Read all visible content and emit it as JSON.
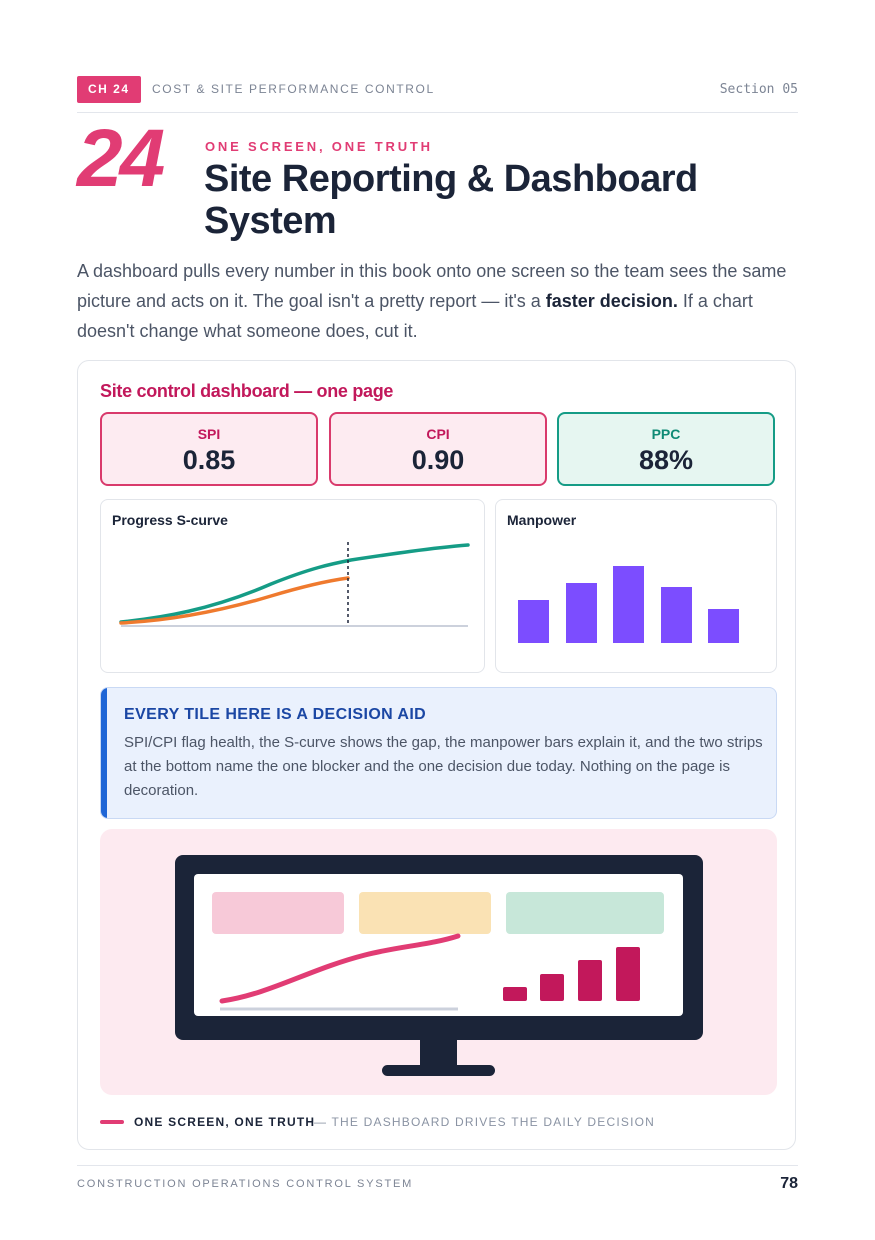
{
  "header": {
    "chapter_badge": "CH 24",
    "chapter_title": "COST & SITE PERFORMANCE CONTROL",
    "section": "Section 05"
  },
  "chapter": {
    "number": "24",
    "kicker": "ONE SCREEN, ONE TRUTH",
    "title": "Site Reporting & Dashboard System"
  },
  "intro": {
    "text_before": "A dashboard pulls every number in this book onto one screen so the team sees the same picture and acts on it. The goal isn't a pretty report — it's a ",
    "emphasis": "faster decision.",
    "text_after": " If a chart doesn't change what someone does, cut it."
  },
  "dashboard": {
    "title": "Site control dashboard — one page",
    "kpis": [
      {
        "label": "SPI",
        "value": "0.85",
        "color": "#d93a6c"
      },
      {
        "label": "CPI",
        "value": "0.90",
        "color": "#d93a6c"
      },
      {
        "label": "PPC",
        "value": "88%",
        "color": "#159c86"
      }
    ],
    "scurve_title": "Progress S-curve",
    "manpower_title": "Manpower",
    "colors": {
      "planned": "#159c86",
      "actual": "#ef7a2e",
      "bars": "#7c4dff",
      "accent": "#e13c74"
    }
  },
  "callout": {
    "heading": "EVERY TILE HERE IS A DECISION AID",
    "body": "SPI/CPI flag health, the S-curve shows the gap, the manpower bars explain it, and the two strips at the bottom name the one blocker and the one decision due today. Nothing on the page is decoration."
  },
  "caption": {
    "strong": "ONE SCREEN, ONE TRUTH",
    "rest": "— THE DASHBOARD DRIVES THE DAILY DECISION"
  },
  "footer": {
    "left": "CONSTRUCTION OPERATIONS CONTROL SYSTEM",
    "page": "78"
  }
}
